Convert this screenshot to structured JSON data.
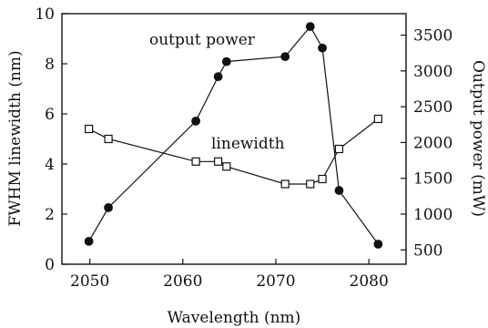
{
  "chart_data": {
    "type": "line",
    "xlabel": "Wavelength (nm)",
    "ylabel_left": "FWHM linewidth (nm)",
    "ylabel_right": "Output power (mW)",
    "xlim": [
      2047,
      2084
    ],
    "ylim_left": [
      0,
      10
    ],
    "ylim_right": [
      300,
      3800
    ],
    "x_ticks": [
      2050,
      2060,
      2070,
      2080
    ],
    "y_ticks_left": [
      0,
      2,
      4,
      6,
      8,
      10
    ],
    "y_ticks_right": [
      500,
      1000,
      1500,
      2000,
      2500,
      3000,
      3500
    ],
    "grid": false,
    "legend": "none",
    "annotations": [
      {
        "text": "output power",
        "series": "output_power"
      },
      {
        "text": "linewidth",
        "series": "linewidth"
      }
    ],
    "series": [
      {
        "key": "output_power",
        "axis": "right",
        "marker": "filled-circle",
        "color": "#111111",
        "points": [
          {
            "x": 2049.9,
            "y": 620
          },
          {
            "x": 2052.0,
            "y": 1090
          },
          {
            "x": 2061.4,
            "y": 2300
          },
          {
            "x": 2063.8,
            "y": 2920
          },
          {
            "x": 2064.7,
            "y": 3130
          },
          {
            "x": 2071.0,
            "y": 3200
          },
          {
            "x": 2073.7,
            "y": 3620
          },
          {
            "x": 2075.0,
            "y": 3320
          },
          {
            "x": 2076.8,
            "y": 1330
          },
          {
            "x": 2081.0,
            "y": 580
          }
        ]
      },
      {
        "key": "linewidth",
        "axis": "left",
        "marker": "open-square",
        "color": "#111111",
        "points": [
          {
            "x": 2049.9,
            "y": 5.4
          },
          {
            "x": 2052.0,
            "y": 5.0
          },
          {
            "x": 2061.4,
            "y": 4.1
          },
          {
            "x": 2063.8,
            "y": 4.1
          },
          {
            "x": 2064.7,
            "y": 3.9
          },
          {
            "x": 2071.0,
            "y": 3.2
          },
          {
            "x": 2073.7,
            "y": 3.2
          },
          {
            "x": 2075.0,
            "y": 3.4
          },
          {
            "x": 2076.8,
            "y": 4.6
          },
          {
            "x": 2081.0,
            "y": 5.8
          }
        ]
      }
    ]
  }
}
